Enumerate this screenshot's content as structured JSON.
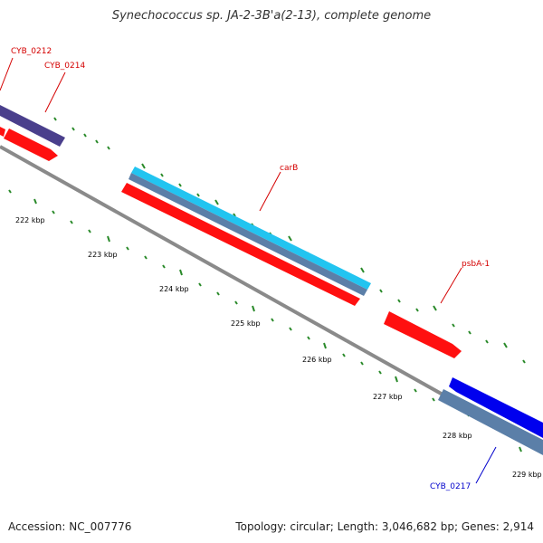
{
  "title": "Synechococcus sp. JA-2-3B'a(2-13), complete genome",
  "footer": {
    "accession": "Accession: NC_007776",
    "stats": "Topology: circular; Length: 3,046,682 bp; Genes: 2,914"
  },
  "colors": {
    "backbone": "#8a8a8a",
    "tick": "#2a8a2a",
    "forward_gene": "#ff1010",
    "reverse_gene": "#0000ee",
    "carB_gene": "#22c4f0",
    "operon_steel": "#5b7fa8",
    "operon_purple": "#4a3f8c",
    "label_red": "#d40000",
    "label_blue": "#0000cc"
  },
  "scale_labels": [
    "222 kbp",
    "223 kbp",
    "224 kbp",
    "225 kbp",
    "226 kbp",
    "227 kbp",
    "228 kbp",
    "229 kbp"
  ],
  "genes": [
    {
      "label": "CYB_0212",
      "color": "label_red"
    },
    {
      "label": "CYB_0214",
      "color": "label_red"
    },
    {
      "label": "carB",
      "color": "label_red"
    },
    {
      "label": "psbA-1",
      "color": "label_red"
    },
    {
      "label": "CYB_0217",
      "color": "label_blue"
    }
  ]
}
